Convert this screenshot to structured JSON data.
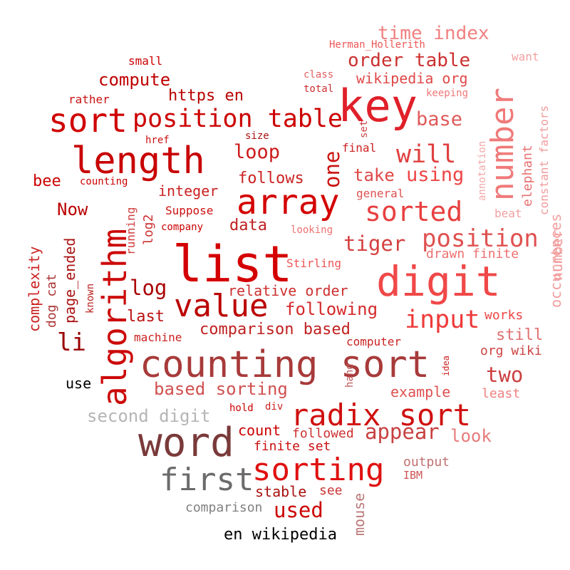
{
  "words": [
    {
      "text": "list",
      "color": "#d40000"
    },
    {
      "text": "counting sort",
      "color": "#a83a3a"
    },
    {
      "text": "word",
      "color": "#7a3a3a"
    },
    {
      "text": "key",
      "color": "#e0202a"
    },
    {
      "text": "digit",
      "color": "#f04848"
    },
    {
      "text": "radix sort",
      "color": "#d01010"
    },
    {
      "text": "algorithm",
      "color": "#cc0a0a"
    },
    {
      "text": "length",
      "color": "#c80000"
    },
    {
      "text": "array",
      "color": "#d40000"
    },
    {
      "text": "sorting",
      "color": "#e01010"
    },
    {
      "text": "first",
      "color": "#6b6b6b"
    },
    {
      "text": "sort",
      "color": "#d00000"
    },
    {
      "text": "number",
      "color": "#f07a7a"
    },
    {
      "text": "value",
      "color": "#bb0000"
    },
    {
      "text": "position table",
      "color": "#cc0000"
    },
    {
      "text": "sorted",
      "color": "#e84040"
    },
    {
      "text": "position",
      "color": "#e05050"
    },
    {
      "text": "input",
      "color": "#ee3a3a"
    },
    {
      "text": "will",
      "color": "#e04040"
    },
    {
      "text": "appear",
      "color": "#c84040"
    },
    {
      "text": "second digit",
      "color": "#b5b5b5"
    },
    {
      "text": "one",
      "color": "#cc1111"
    },
    {
      "text": "two",
      "color": "#cc4040"
    },
    {
      "text": "time index",
      "color": "#f08080"
    },
    {
      "text": "order table",
      "color": "#cc3030"
    },
    {
      "text": "used",
      "color": "#cc0000"
    },
    {
      "text": "base",
      "color": "#e05a5a"
    },
    {
      "text": "using",
      "color": "#ee4444"
    },
    {
      "text": "tiger",
      "color": "#d44040"
    },
    {
      "text": "occurrences",
      "color": "#f3a0a0"
    },
    {
      "text": "log",
      "color": "#aa0000"
    },
    {
      "text": "li",
      "color": "#990000"
    },
    {
      "text": "loop",
      "color": "#cc1a1a"
    },
    {
      "text": "comparison based",
      "color": "#c02020"
    },
    {
      "text": "https en",
      "color": "#b80000"
    },
    {
      "text": "compute",
      "color": "#c00000"
    },
    {
      "text": "following",
      "color": "#d42a2a"
    },
    {
      "text": "take",
      "color": "#e04848"
    },
    {
      "text": "based sorting",
      "color": "#d05050"
    },
    {
      "text": "follows",
      "color": "#cc2222"
    },
    {
      "text": "bee",
      "color": "#cc0000"
    },
    {
      "text": "Now",
      "color": "#bb0000"
    },
    {
      "text": "integer",
      "color": "#cc2020"
    },
    {
      "text": "data",
      "color": "#c02020"
    },
    {
      "text": "last",
      "color": "#bb1111"
    },
    {
      "text": "relative order",
      "color": "#cc3030"
    },
    {
      "text": "wikipedia org",
      "color": "#e04848"
    },
    {
      "text": "example",
      "color": "#e05050"
    },
    {
      "text": "look",
      "color": "#e87a7a"
    },
    {
      "text": "still",
      "color": "#e07070"
    },
    {
      "text": "org wiki",
      "color": "#cc4444"
    },
    {
      "text": "drawn finite",
      "color": "#ee7070"
    },
    {
      "text": "count",
      "color": "#cc0000"
    },
    {
      "text": "finite set",
      "color": "#cc1010"
    },
    {
      "text": "followed",
      "color": "#cc3030"
    },
    {
      "text": "stable",
      "color": "#aa1111"
    },
    {
      "text": "see",
      "color": "#cc3333"
    },
    {
      "text": "en wikipedia",
      "color": "#000000"
    },
    {
      "text": "comparison",
      "color": "#808080"
    },
    {
      "text": "use",
      "color": "#000000"
    },
    {
      "text": "output",
      "color": "#c07070"
    },
    {
      "text": "IBM",
      "color": "#cc5555"
    },
    {
      "text": "mouse",
      "color": "#bb7777"
    },
    {
      "text": "least",
      "color": "#f08080"
    },
    {
      "text": "works",
      "color": "#ee4444"
    },
    {
      "text": "computer",
      "color": "#cc2222"
    },
    {
      "text": "machine",
      "color": "#cc2020"
    },
    {
      "text": "log2",
      "color": "#cc3030"
    },
    {
      "text": "running",
      "color": "#d04040"
    },
    {
      "text": "complexity",
      "color": "#cc2222"
    },
    {
      "text": "page_ended",
      "color": "#aa1111"
    },
    {
      "text": "dog cat",
      "color": "#aa3333"
    },
    {
      "text": "known",
      "color": "#bb2222"
    },
    {
      "text": "Suppose",
      "color": "#cc1111"
    },
    {
      "text": "company",
      "color": "#cc0000"
    },
    {
      "text": "looking",
      "color": "#f07070"
    },
    {
      "text": "Stirling",
      "color": "#ee5555"
    },
    {
      "text": "general",
      "color": "#e05050"
    },
    {
      "text": "final",
      "color": "#cc2222"
    },
    {
      "text": "size",
      "color": "#aa1111"
    },
    {
      "text": "href",
      "color": "#cc1111"
    },
    {
      "text": "counting",
      "color": "#cc0000"
    },
    {
      "text": "small",
      "color": "#cc0000"
    },
    {
      "text": "rather",
      "color": "#cc1111"
    },
    {
      "text": "Herman_Hollerith",
      "color": "#ee5555"
    },
    {
      "text": "class",
      "color": "#e06060"
    },
    {
      "text": "total",
      "color": "#cc3030"
    },
    {
      "text": "keeping",
      "color": "#f07878"
    },
    {
      "text": "want",
      "color": "#f3a0a0"
    },
    {
      "text": "set",
      "color": "#cc4444"
    },
    {
      "text": "annotation",
      "color": "#f3a8a8"
    },
    {
      "text": "elephant",
      "color": "#e87070"
    },
    {
      "text": "constant factors",
      "color": "#f29b9b"
    },
    {
      "text": "beat",
      "color": "#f0a0a0"
    },
    {
      "text": "hold",
      "color": "#cc0000"
    },
    {
      "text": "div",
      "color": "#cc2222"
    },
    {
      "text": "hand",
      "color": "#bb5555"
    },
    {
      "text": "idea",
      "color": "#cc2222"
    },
    {
      "text": "number",
      "color": "#f29b9b"
    }
  ]
}
